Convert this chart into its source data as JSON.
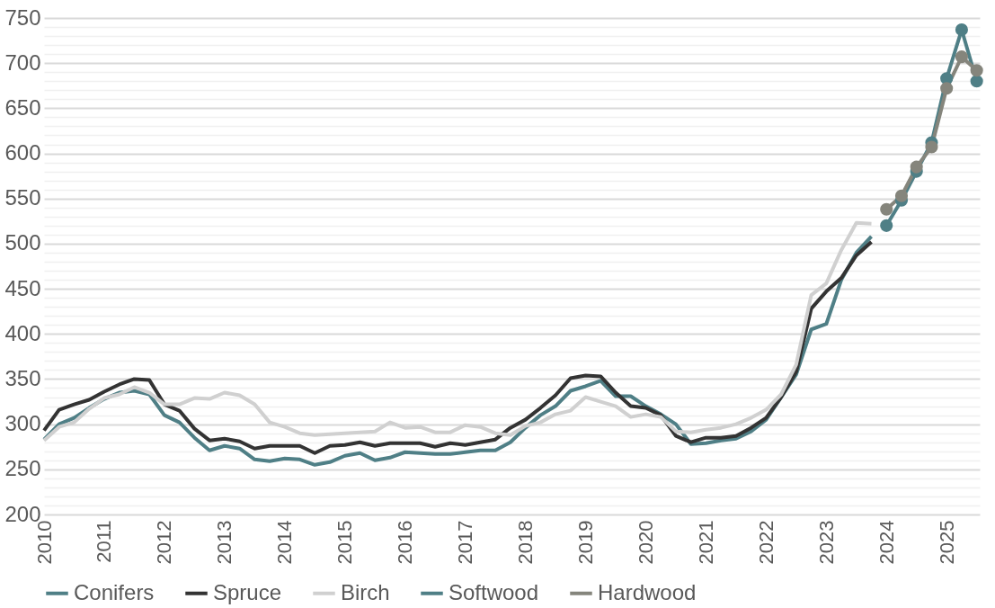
{
  "chart_data": {
    "type": "line",
    "legend": "bottom",
    "grid": "y",
    "xlim": [
      2010,
      2025.55
    ],
    "xticks": [
      2010,
      2011,
      2012,
      2013,
      2014,
      2015,
      2016,
      2017,
      2018,
      2019,
      2020,
      2021,
      2022,
      2023,
      2024,
      2025
    ],
    "ylim": [
      200,
      750
    ],
    "yticks": [
      200,
      {
        "value": 210,
        "label": null
      },
      {
        "value": 220,
        "label": null
      },
      {
        "value": 230,
        "label": null
      },
      {
        "value": 240,
        "label": null
      },
      250,
      {
        "value": 260,
        "label": null
      },
      {
        "value": 270,
        "label": null
      },
      {
        "value": 280,
        "label": null
      },
      {
        "value": 290,
        "label": null
      },
      300,
      {
        "value": 310,
        "label": null
      },
      {
        "value": 320,
        "label": null
      },
      {
        "value": 330,
        "label": null
      },
      {
        "value": 340,
        "label": null
      },
      350,
      {
        "value": 360,
        "label": null
      },
      {
        "value": 370,
        "label": null
      },
      {
        "value": 380,
        "label": null
      },
      {
        "value": 390,
        "label": null
      },
      400,
      {
        "value": 410,
        "label": null
      },
      {
        "value": 420,
        "label": null
      },
      {
        "value": 430,
        "label": null
      },
      {
        "value": 440,
        "label": null
      },
      450,
      {
        "value": 460,
        "label": null
      },
      {
        "value": 470,
        "label": null
      },
      {
        "value": 480,
        "label": null
      },
      {
        "value": 490,
        "label": null
      },
      500,
      {
        "value": 510,
        "label": null
      },
      {
        "value": 520,
        "label": null
      },
      {
        "value": 530,
        "label": null
      },
      {
        "value": 540,
        "label": null
      },
      550,
      {
        "value": 560,
        "label": null
      },
      {
        "value": 570,
        "label": null
      },
      {
        "value": 580,
        "label": null
      },
      {
        "value": 590,
        "label": null
      },
      600,
      {
        "value": 610,
        "label": null
      },
      {
        "value": 620,
        "label": null
      },
      {
        "value": 630,
        "label": null
      },
      {
        "value": 640,
        "label": null
      },
      650,
      {
        "value": 660,
        "label": null
      },
      {
        "value": 670,
        "label": null
      },
      {
        "value": 680,
        "label": null
      },
      {
        "value": 690,
        "label": null
      },
      700,
      {
        "value": 710,
        "label": null
      },
      {
        "value": 720,
        "label": null
      },
      {
        "value": 730,
        "label": null
      },
      {
        "value": 740,
        "label": null
      },
      750
    ],
    "x": [
      2010,
      2010.25,
      2010.5,
      2010.75,
      2011,
      2011.25,
      2011.5,
      2011.75,
      2012,
      2012.25,
      2012.5,
      2012.75,
      2013,
      2013.25,
      2013.5,
      2013.75,
      2014,
      2014.25,
      2014.5,
      2014.75,
      2015,
      2015.25,
      2015.5,
      2015.75,
      2016,
      2016.25,
      2016.5,
      2016.75,
      2017,
      2017.25,
      2017.5,
      2017.75,
      2018,
      2018.25,
      2018.5,
      2018.75,
      2019,
      2019.25,
      2019.5,
      2019.75,
      2020,
      2020.25,
      2020.5,
      2020.75,
      2021,
      2021.25,
      2021.5,
      2021.75,
      2022,
      2022.25,
      2022.5,
      2022.75,
      2023,
      2023.25,
      2023.5,
      2023.75
    ],
    "series": [
      {
        "name": "Conifers",
        "color": "#4f7f86",
        "values": [
          283,
          300,
          307,
          318,
          328,
          335,
          337,
          333,
          310,
          302,
          285,
          271,
          276,
          273,
          261,
          259,
          262,
          261,
          255,
          258,
          265,
          268,
          260,
          263,
          269,
          268,
          267,
          267,
          269,
          271,
          271,
          280,
          296,
          310,
          320,
          337,
          342,
          348,
          331,
          331,
          320,
          311,
          300,
          278,
          279,
          282,
          284,
          292,
          305,
          330,
          355,
          405,
          411,
          460,
          490,
          508
        ]
      },
      {
        "name": "Spruce",
        "color": "#333333",
        "values": [
          293,
          316,
          322,
          327,
          336,
          344,
          350,
          349,
          322,
          315,
          295,
          282,
          284,
          281,
          273,
          276,
          276,
          276,
          268,
          276,
          277,
          280,
          276,
          279,
          279,
          279,
          275,
          279,
          277,
          280,
          283,
          296,
          305,
          318,
          332,
          351,
          354,
          353,
          335,
          320,
          318,
          310,
          287,
          280,
          285,
          285,
          287,
          296,
          307,
          330,
          358,
          428,
          447,
          462,
          487,
          502
        ]
      },
      {
        "name": "Birch",
        "color": "#d0d0d0",
        "values": [
          282,
          297,
          302,
          317,
          329,
          333,
          341,
          335,
          322,
          322,
          329,
          328,
          335,
          332,
          322,
          302,
          297,
          290,
          288,
          289,
          290,
          291,
          292,
          302,
          296,
          297,
          291,
          291,
          299,
          297,
          290,
          288,
          298,
          302,
          311,
          315,
          330,
          325,
          320,
          308,
          311,
          308,
          292,
          291,
          294,
          296,
          300,
          307,
          316,
          333,
          366,
          443,
          456,
          493,
          523,
          522
        ]
      },
      {
        "name": "Softwood",
        "color": "#4f7f86",
        "marker": "circle",
        "x": [
          2024,
          2024.25,
          2024.5,
          2024.75,
          2025,
          2025.25,
          2025.5
        ],
        "values": [
          520,
          548,
          580,
          612,
          683,
          737,
          680
        ]
      },
      {
        "name": "Hardwood",
        "color": "#85857c",
        "marker": "circle",
        "x": [
          2024,
          2024.25,
          2024.5,
          2024.75,
          2025,
          2025.25,
          2025.5
        ],
        "values": [
          538,
          553,
          585,
          607,
          672,
          707,
          692
        ]
      }
    ]
  }
}
